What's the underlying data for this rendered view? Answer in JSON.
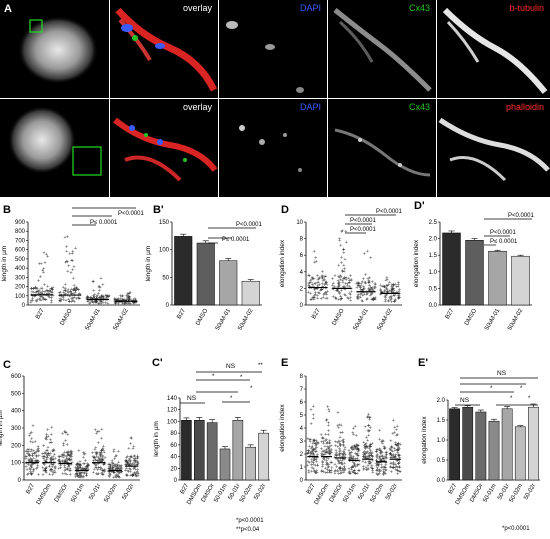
{
  "colors": {
    "dapi": "#3a5cff",
    "cx43": "#22c322",
    "tubulin": "#ff2a2a",
    "phalloidin": "#ff2a2a",
    "bar_dark": "#2b2b2b",
    "bar_mid": "#666666",
    "bar_light": "#a6a6a6",
    "bar_lighter": "#d4d4d4",
    "green_box": "#22dd22"
  },
  "micro": {
    "row1": {
      "overlay": "overlay",
      "dapi": "DAPI",
      "cx43": "Cx43",
      "marker": "b-tubulin"
    },
    "row2": {
      "overlay": "overlay",
      "dapi": "DAPI",
      "cx43": "Cx43",
      "marker": "phalloidin"
    }
  },
  "panels": {
    "A": "A",
    "B": "B",
    "Bp": "B'",
    "C": "C",
    "Cp": "C'",
    "D": "D",
    "Dp": "D'",
    "E": "E",
    "Ep": "E'"
  },
  "annotations": {
    "p0001": "P≤ 0.0001",
    "plt0001": "P<0.0001",
    "ns": "NS",
    "star": "*",
    "dstar": "**",
    "footC1": "*p<0.0001",
    "footC2": "**p<0.04",
    "footE": "*p<0.0001"
  },
  "chart_data": [
    {
      "id": "B",
      "type": "scatter",
      "xlabel": "",
      "ylabel": "length in µm",
      "ylim": [
        0,
        900
      ],
      "yticks": [
        0,
        100,
        200,
        300,
        400,
        500,
        600,
        700,
        800,
        900
      ],
      "categories": [
        "B27",
        "DMSO",
        "50uM-01",
        "50uM-02"
      ],
      "medians": [
        110,
        108,
        60,
        40
      ],
      "max": [
        650,
        790,
        330,
        150
      ]
    },
    {
      "id": "B'",
      "type": "bar",
      "ylabel": "length in µm",
      "ylim": [
        0,
        150
      ],
      "yticks": [
        0,
        50,
        100,
        150
      ],
      "categories": [
        "B27",
        "DMSO",
        "50uM-01",
        "50uM-02"
      ],
      "values": [
        124,
        112,
        80,
        43
      ],
      "errors": [
        4,
        4,
        4,
        3
      ]
    },
    {
      "id": "C",
      "type": "scatter",
      "ylabel": "length in µm",
      "ylim": [
        0,
        600
      ],
      "yticks": [
        0,
        100,
        200,
        300,
        400,
        500,
        600
      ],
      "categories": [
        "B27",
        "DMSOm",
        "DMSOr",
        "50-01m",
        "50-01r",
        "50-02m",
        "50-02r"
      ],
      "medians": [
        100,
        100,
        95,
        55,
        100,
        55,
        80
      ]
    },
    {
      "id": "C'",
      "type": "bar",
      "ylabel": "length in µm",
      "ylim": [
        0,
        140
      ],
      "yticks": [
        0,
        20,
        40,
        60,
        80,
        100,
        120,
        140
      ],
      "categories": [
        "B27",
        "DMSOm",
        "DMSOr",
        "50-01m",
        "50-01r",
        "50-02m",
        "50-02r"
      ],
      "values": [
        102,
        102,
        98,
        53,
        102,
        56,
        80
      ],
      "errors": [
        4,
        5,
        5,
        4,
        5,
        4,
        5
      ]
    },
    {
      "id": "D",
      "type": "scatter",
      "ylabel": "elongation index",
      "ylim": [
        0,
        10
      ],
      "yticks": [
        0,
        2,
        4,
        6,
        8,
        10
      ],
      "categories": [
        "B27",
        "DMSO",
        "50uM-01",
        "50uM-02"
      ],
      "medians": [
        2.1,
        2.0,
        1.6,
        1.4
      ],
      "max": [
        7.2,
        9.0,
        6.5,
        3.5
      ]
    },
    {
      "id": "D'",
      "type": "bar",
      "ylabel": "elongation index",
      "ylim": [
        0,
        2.5
      ],
      "yticks": [
        0.0,
        0.5,
        1.0,
        1.5,
        2.0,
        2.5
      ],
      "categories": [
        "B27",
        "DMSO",
        "50uM-01",
        "50uM-02"
      ],
      "values": [
        2.17,
        1.95,
        1.62,
        1.47
      ],
      "errors": [
        0.06,
        0.05,
        0.03,
        0.03
      ]
    },
    {
      "id": "E",
      "type": "scatter",
      "ylabel": "elongation index",
      "ylim": [
        0,
        8
      ],
      "yticks": [
        0,
        1,
        2,
        3,
        4,
        5,
        6,
        7,
        8
      ],
      "categories": [
        "B27",
        "DMSOm",
        "DMSOr",
        "50-01m",
        "50-01r",
        "50-02m",
        "50-02r"
      ],
      "medians": [
        1.8,
        1.8,
        1.7,
        1.5,
        1.6,
        1.4,
        1.6
      ]
    },
    {
      "id": "E'",
      "type": "bar",
      "ylabel": "elongation index",
      "ylim": [
        0,
        2.0
      ],
      "yticks": [
        0.0,
        0.5,
        1.0,
        1.5,
        2.0
      ],
      "categories": [
        "B27",
        "DMSOm",
        "DMSOr",
        "50-01m",
        "50-01r",
        "50-02m",
        "50-02r"
      ],
      "values": [
        1.78,
        1.82,
        1.7,
        1.47,
        1.78,
        1.33,
        1.82
      ],
      "errors": [
        0.03,
        0.04,
        0.05,
        0.05,
        0.06,
        0.03,
        0.08
      ]
    }
  ]
}
